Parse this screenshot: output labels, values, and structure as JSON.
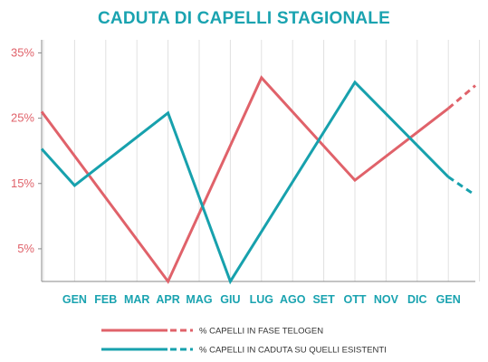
{
  "colors": {
    "title": "#1aa3b0",
    "axis_labels": "#e0626a",
    "month_labels": "#1aa3b0",
    "series_telogen": "#e0626a",
    "series_caduta": "#17a1ad",
    "grid": "#e0e0e0",
    "axis": "#888888"
  },
  "chart_data": {
    "type": "line",
    "title": "CADUTA DI CAPELLI STAGIONALE",
    "xlabel": "",
    "ylabel": "",
    "categories": [
      "GEN",
      "FEB",
      "MAR",
      "APR",
      "MAG",
      "GIU",
      "LUG",
      "AGO",
      "SET",
      "OTT",
      "NOV",
      "DIC",
      "GEN"
    ],
    "y_ticks": [
      {
        "value": 35,
        "label": "35%"
      },
      {
        "value": 25,
        "label": "25%"
      },
      {
        "value": 15,
        "label": "15%"
      },
      {
        "value": 5,
        "label": "5%"
      }
    ],
    "ylim": [
      0,
      37
    ],
    "grid": "vertical",
    "legend_position": "bottom",
    "series": [
      {
        "name": "% CAPELLI IN FASE TELOGEN",
        "color_key": "series_telogen",
        "points": [
          {
            "x": "DIC",
            "y": 26
          },
          {
            "x": "APR",
            "y": 0
          },
          {
            "x": "LUG",
            "y": 31.2
          },
          {
            "x": "OTT",
            "y": 15.5
          },
          {
            "x": "GEN",
            "y": 26.5
          }
        ],
        "projection": [
          {
            "x": "GEN",
            "y": 26.5
          },
          {
            "x": "FEB",
            "y": 30
          }
        ]
      },
      {
        "name": "% CAPELLI IN CADUTA SU QUELLI ESISTENTI",
        "color_key": "series_caduta",
        "points": [
          {
            "x": "DIC",
            "y": 20.3
          },
          {
            "x": "GEN",
            "y": 14.7
          },
          {
            "x": "APR",
            "y": 25.8
          },
          {
            "x": "GIU",
            "y": 0
          },
          {
            "x": "OTT",
            "y": 30.5
          },
          {
            "x": "GEN",
            "y": 16
          }
        ],
        "projection": [
          {
            "x": "GEN",
            "y": 16
          },
          {
            "x": "FEB",
            "y": 13.2
          }
        ]
      }
    ]
  }
}
